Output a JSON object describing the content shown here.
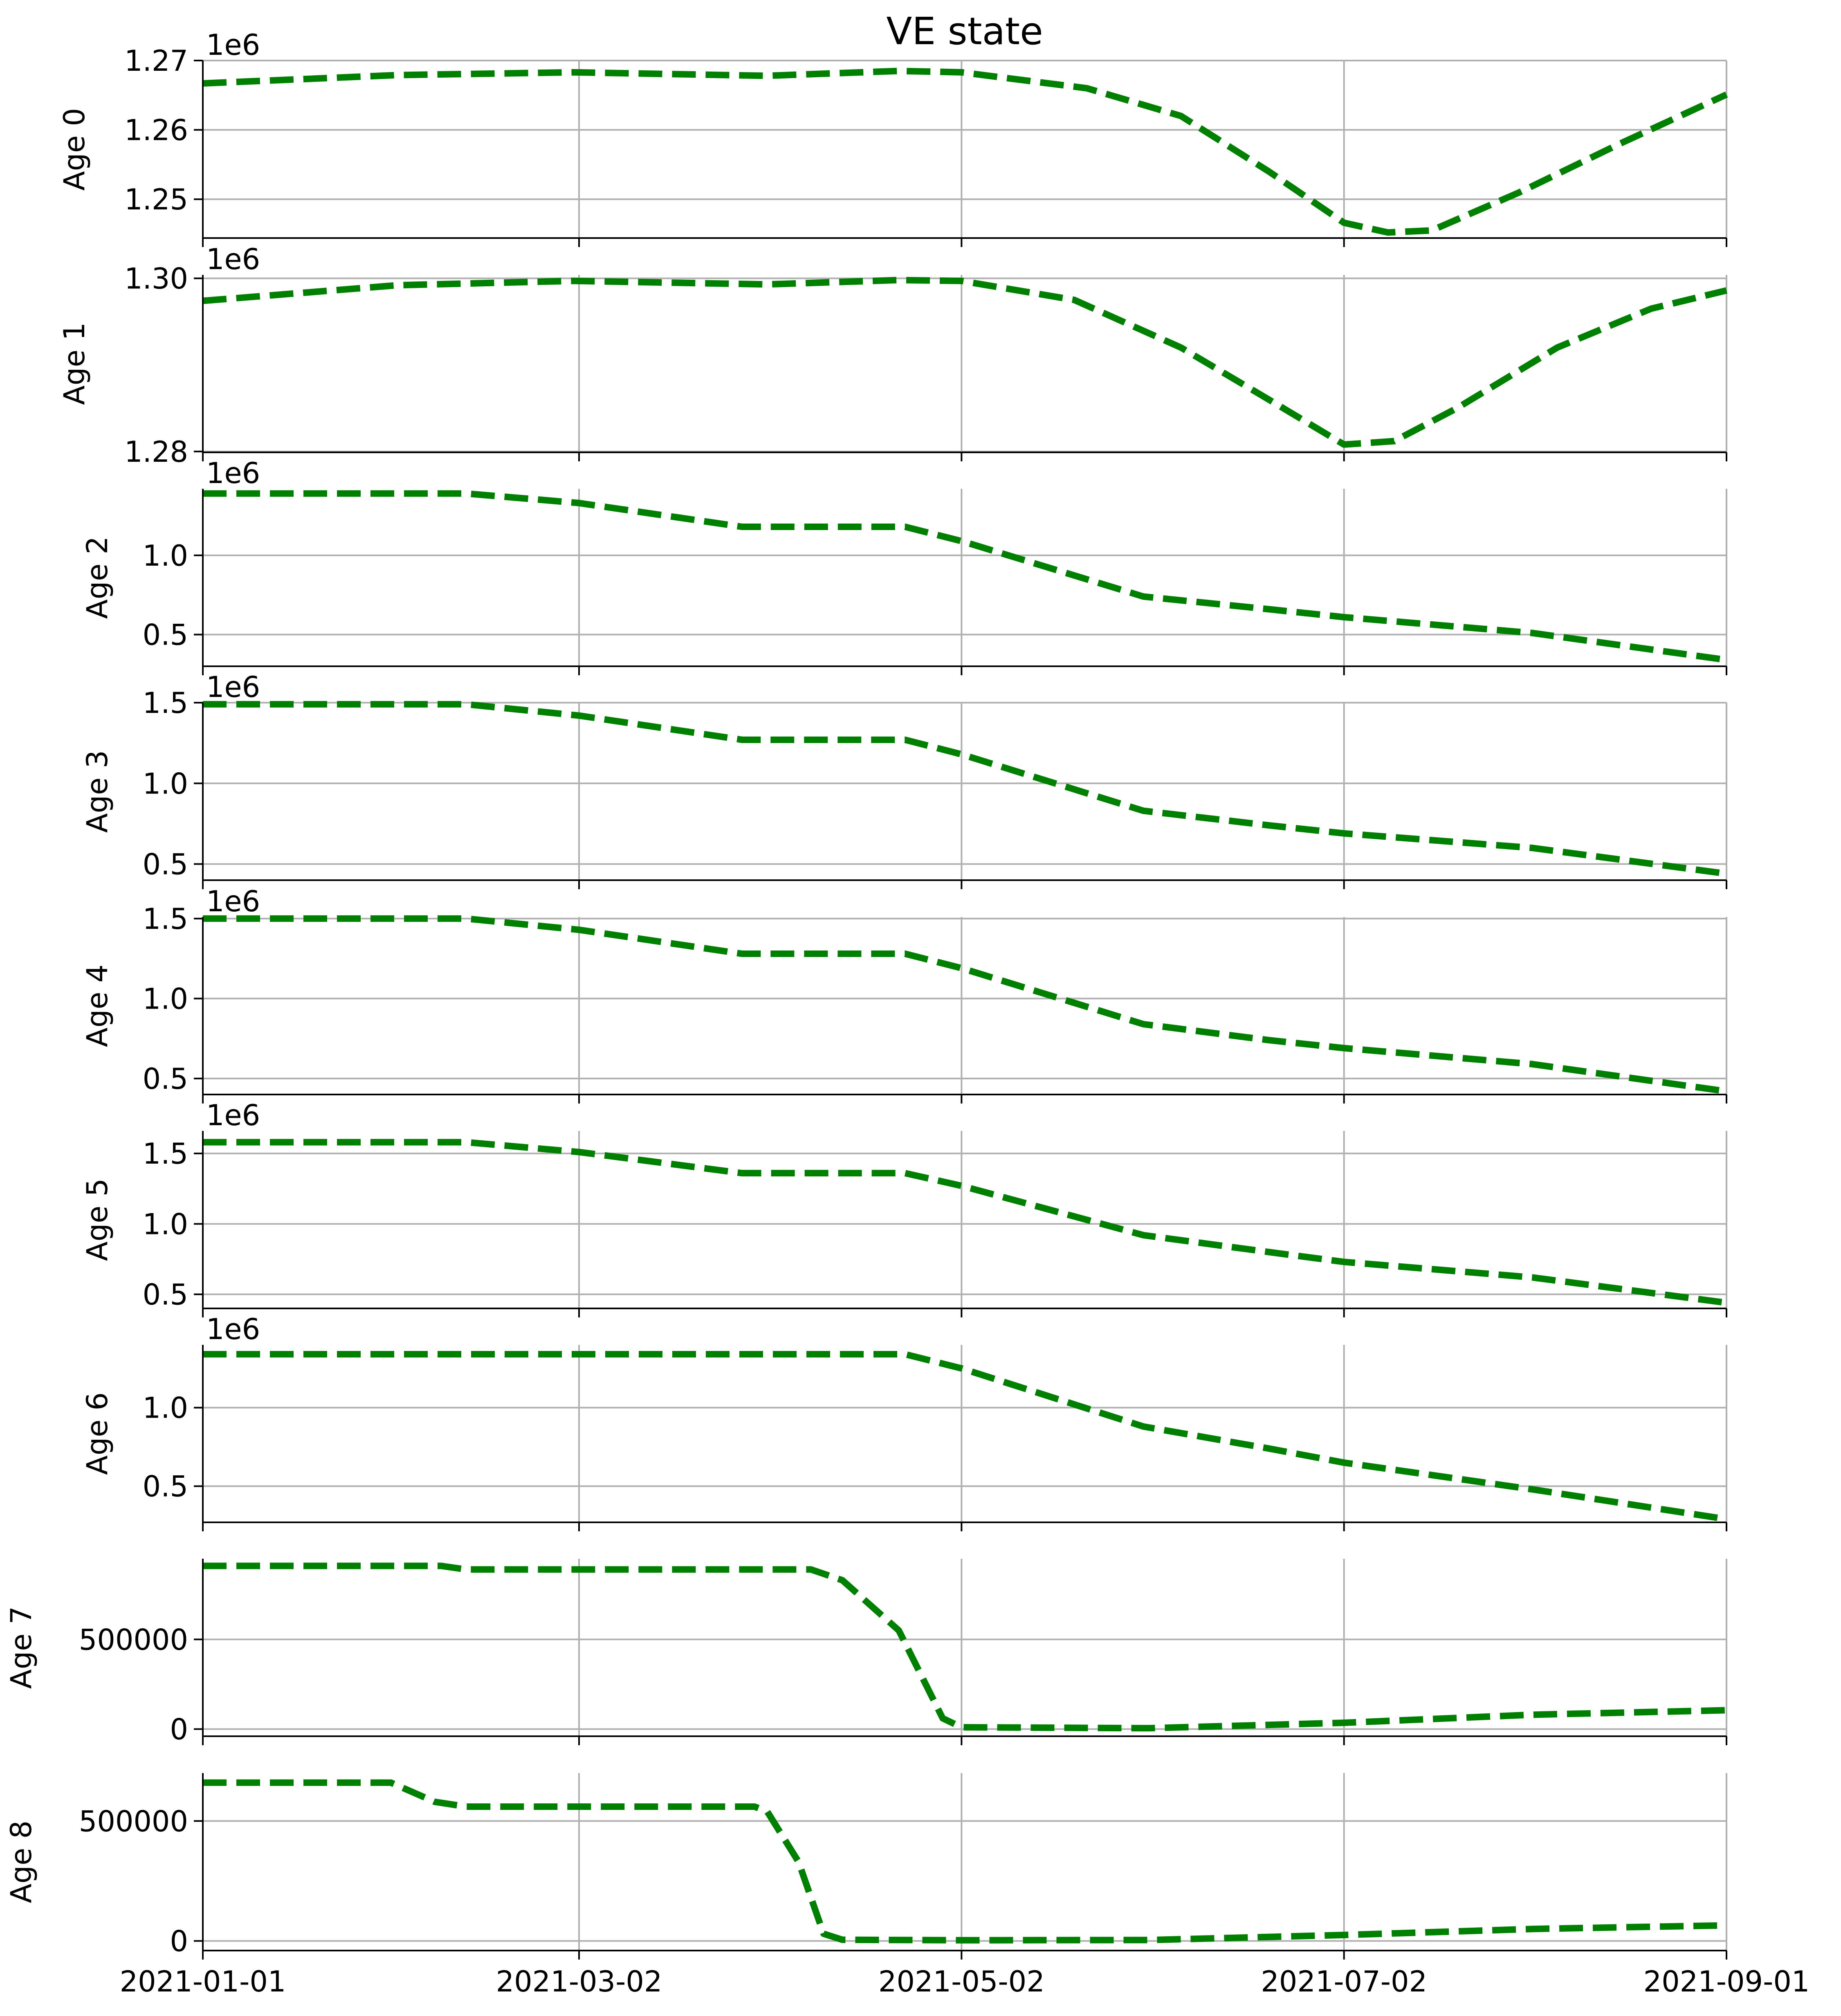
{
  "figure": {
    "title": "VE state"
  },
  "chart_data": {
    "type": "line",
    "title": "VE state",
    "x_tick_labels": [
      "2021-01-01",
      "2021-03-02",
      "2021-05-02",
      "2021-07-02",
      "2021-09-01"
    ],
    "x_ticks": [
      "2021-01-01",
      "2021-03-02",
      "2021-05-02",
      "2021-07-02",
      "2021-09-01"
    ],
    "xlim": [
      "2021-01-01",
      "2021-09-01"
    ],
    "grid": true,
    "line_color": "#008000",
    "line_style": "dashed",
    "panels": [
      {
        "ylabel": "Age 0",
        "offset": "1e6",
        "ylim": [
          1.2444,
          1.27
        ],
        "yticks": [
          1.25,
          1.26,
          1.27
        ],
        "ytick_labels": [
          "1.25",
          "1.26",
          "1.27"
        ],
        "points": [
          [
            "2021-01-01",
            1.2667
          ],
          [
            "2021-02-01",
            1.2679
          ],
          [
            "2021-03-01",
            1.2683
          ],
          [
            "2021-04-01",
            1.2678
          ],
          [
            "2021-04-22",
            1.2685
          ],
          [
            "2021-05-02",
            1.2683
          ],
          [
            "2021-05-22",
            1.266
          ],
          [
            "2021-06-06",
            1.262
          ],
          [
            "2021-06-20",
            1.254
          ],
          [
            "2021-07-02",
            1.2466
          ],
          [
            "2021-07-09",
            1.2452
          ],
          [
            "2021-07-16",
            1.2455
          ],
          [
            "2021-07-30",
            1.251
          ],
          [
            "2021-08-15",
            1.258
          ],
          [
            "2021-09-01",
            1.2651
          ]
        ]
      },
      {
        "ylabel": "Age 1",
        "offset": "1e6",
        "ylim": [
          1.2799,
          1.3004
        ],
        "yticks": [
          1.28,
          1.3
        ],
        "ytick_labels": [
          "1.28",
          "1.30"
        ],
        "points": [
          [
            "2021-01-01",
            1.2974
          ],
          [
            "2021-02-01",
            1.2992
          ],
          [
            "2021-03-01",
            1.2997
          ],
          [
            "2021-04-01",
            1.2993
          ],
          [
            "2021-04-22",
            1.2998
          ],
          [
            "2021-05-02",
            1.2997
          ],
          [
            "2021-05-20",
            1.2975
          ],
          [
            "2021-06-06",
            1.292
          ],
          [
            "2021-06-20",
            1.286
          ],
          [
            "2021-07-02",
            1.2808
          ],
          [
            "2021-07-10",
            1.2812
          ],
          [
            "2021-07-20",
            1.285
          ],
          [
            "2021-08-05",
            1.292
          ],
          [
            "2021-08-20",
            1.2965
          ],
          [
            "2021-09-01",
            1.2986
          ]
        ]
      },
      {
        "ylabel": "Age 2",
        "offset": "1e6",
        "ylim": [
          0.3,
          1.42
        ],
        "yticks": [
          0.5,
          1.0
        ],
        "ytick_labels": [
          "0.5",
          "1.0"
        ],
        "points": [
          [
            "2021-01-01",
            1.39
          ],
          [
            "2021-02-12",
            1.39
          ],
          [
            "2021-03-02",
            1.33
          ],
          [
            "2021-03-28",
            1.18
          ],
          [
            "2021-04-23",
            1.18
          ],
          [
            "2021-05-02",
            1.09
          ],
          [
            "2021-05-31",
            0.74
          ],
          [
            "2021-06-20",
            0.66
          ],
          [
            "2021-07-02",
            0.61
          ],
          [
            "2021-08-01",
            0.51
          ],
          [
            "2021-09-01",
            0.34
          ]
        ]
      },
      {
        "ylabel": "Age 3",
        "offset": "1e6",
        "ylim": [
          0.4,
          1.5
        ],
        "yticks": [
          0.5,
          1.0,
          1.5
        ],
        "ytick_labels": [
          "0.5",
          "1.0",
          "1.5"
        ],
        "points": [
          [
            "2021-01-01",
            1.49
          ],
          [
            "2021-02-12",
            1.49
          ],
          [
            "2021-03-02",
            1.42
          ],
          [
            "2021-03-28",
            1.27
          ],
          [
            "2021-04-23",
            1.27
          ],
          [
            "2021-05-02",
            1.18
          ],
          [
            "2021-05-31",
            0.83
          ],
          [
            "2021-06-20",
            0.74
          ],
          [
            "2021-07-02",
            0.69
          ],
          [
            "2021-08-01",
            0.6
          ],
          [
            "2021-09-01",
            0.44
          ]
        ]
      },
      {
        "ylabel": "Age 4",
        "offset": "1e6",
        "ylim": [
          0.4,
          1.51
        ],
        "yticks": [
          0.5,
          1.0,
          1.5
        ],
        "ytick_labels": [
          "0.5",
          "1.0",
          "1.5"
        ],
        "points": [
          [
            "2021-01-01",
            1.5
          ],
          [
            "2021-02-12",
            1.5
          ],
          [
            "2021-03-02",
            1.43
          ],
          [
            "2021-03-28",
            1.28
          ],
          [
            "2021-04-23",
            1.28
          ],
          [
            "2021-05-02",
            1.19
          ],
          [
            "2021-05-31",
            0.84
          ],
          [
            "2021-06-20",
            0.74
          ],
          [
            "2021-07-02",
            0.69
          ],
          [
            "2021-08-01",
            0.59
          ],
          [
            "2021-09-01",
            0.42
          ]
        ]
      },
      {
        "ylabel": "Age 5",
        "offset": "1e6",
        "ylim": [
          0.4,
          1.66
        ],
        "yticks": [
          0.5,
          1.0,
          1.5
        ],
        "ytick_labels": [
          "0.5",
          "1.0",
          "1.5"
        ],
        "points": [
          [
            "2021-01-01",
            1.58
          ],
          [
            "2021-02-12",
            1.58
          ],
          [
            "2021-03-02",
            1.51
          ],
          [
            "2021-03-28",
            1.36
          ],
          [
            "2021-04-23",
            1.36
          ],
          [
            "2021-05-02",
            1.27
          ],
          [
            "2021-05-31",
            0.92
          ],
          [
            "2021-06-20",
            0.8
          ],
          [
            "2021-07-02",
            0.73
          ],
          [
            "2021-08-01",
            0.62
          ],
          [
            "2021-09-01",
            0.44
          ]
        ]
      },
      {
        "ylabel": "Age 6",
        "offset": "1e6",
        "ylim": [
          0.27,
          1.4
        ],
        "yticks": [
          0.5,
          1.0
        ],
        "ytick_labels": [
          "0.5",
          "1.0"
        ],
        "points": [
          [
            "2021-01-01",
            1.34
          ],
          [
            "2021-04-23",
            1.34
          ],
          [
            "2021-05-02",
            1.25
          ],
          [
            "2021-05-31",
            0.88
          ],
          [
            "2021-06-20",
            0.74
          ],
          [
            "2021-07-02",
            0.65
          ],
          [
            "2021-08-01",
            0.48
          ],
          [
            "2021-09-01",
            0.29
          ]
        ]
      },
      {
        "ylabel": "Age 7",
        "offset": "",
        "ylim": [
          -40000,
          950000
        ],
        "yticks": [
          0,
          500000
        ],
        "ytick_labels": [
          "0",
          "500000"
        ],
        "points": [
          [
            "2021-01-01",
            910000
          ],
          [
            "2021-02-08",
            910000
          ],
          [
            "2021-02-12",
            890000
          ],
          [
            "2021-04-08",
            890000
          ],
          [
            "2021-04-13",
            830000
          ],
          [
            "2021-04-22",
            550000
          ],
          [
            "2021-04-29",
            60000
          ],
          [
            "2021-05-02",
            10000
          ],
          [
            "2021-06-01",
            5000
          ],
          [
            "2021-07-02",
            35000
          ],
          [
            "2021-08-01",
            80000
          ],
          [
            "2021-09-01",
            105000
          ]
        ]
      },
      {
        "ylabel": "Age 8",
        "offset": "",
        "ylim": [
          -40000,
          700000
        ],
        "yticks": [
          0,
          500000
        ],
        "ytick_labels": [
          "0",
          "500000"
        ],
        "points": [
          [
            "2021-01-01",
            660000
          ],
          [
            "2021-01-31",
            660000
          ],
          [
            "2021-02-07",
            580000
          ],
          [
            "2021-02-12",
            560000
          ],
          [
            "2021-03-30",
            560000
          ],
          [
            "2021-04-01",
            540000
          ],
          [
            "2021-04-06",
            330000
          ],
          [
            "2021-04-10",
            30000
          ],
          [
            "2021-04-13",
            5000
          ],
          [
            "2021-05-02",
            3000
          ],
          [
            "2021-06-01",
            4000
          ],
          [
            "2021-07-02",
            25000
          ],
          [
            "2021-08-01",
            50000
          ],
          [
            "2021-09-01",
            65000
          ]
        ]
      }
    ]
  }
}
